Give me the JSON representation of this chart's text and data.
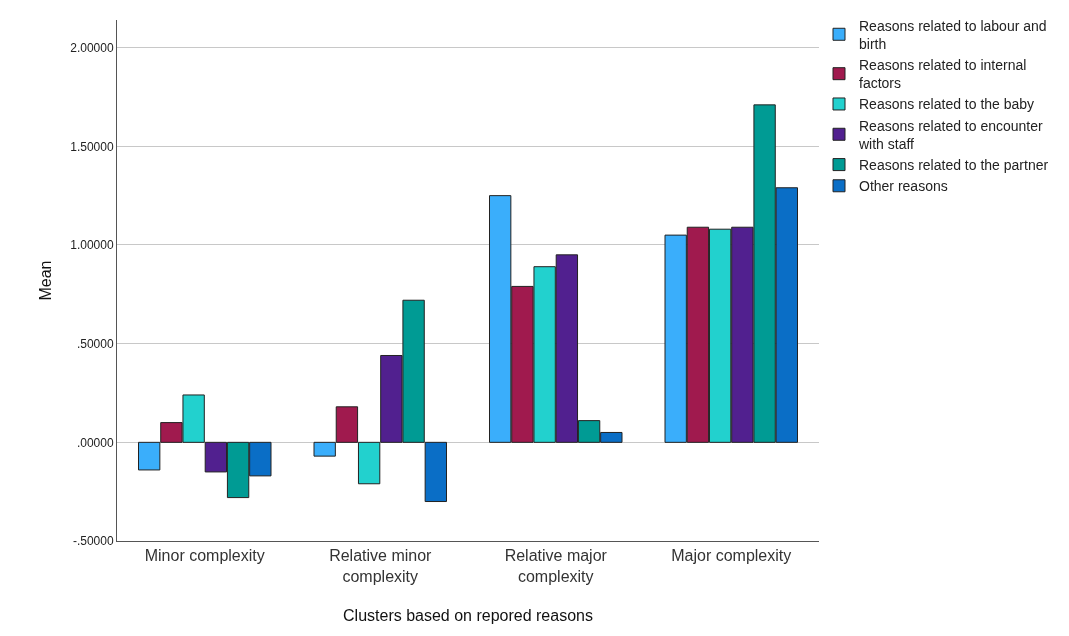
{
  "chart_data": {
    "type": "bar",
    "xlabel": "Clusters based on repored reasons",
    "ylabel": "Mean",
    "categories": [
      "Minor complexity",
      "Relative minor complexity",
      "Relative major complexity",
      "Major complexity"
    ],
    "series": [
      {
        "name": "Reasons related to labour and birth",
        "color": "#3aaefb",
        "values": [
          -0.14,
          -0.07,
          1.25,
          1.05
        ]
      },
      {
        "name": "Reasons related to internal factors",
        "color": "#a01a4e",
        "values": [
          0.1,
          0.18,
          0.79,
          1.09
        ]
      },
      {
        "name": "Reasons related to the baby",
        "color": "#22d1ce",
        "values": [
          0.24,
          -0.21,
          0.89,
          1.08
        ]
      },
      {
        "name": "Reasons related to encounter with staff",
        "color": "#51208f",
        "values": [
          -0.15,
          0.44,
          0.95,
          1.09
        ]
      },
      {
        "name": "Reasons related to the partner",
        "color": "#009b94",
        "values": [
          -0.28,
          0.72,
          0.11,
          1.71
        ]
      },
      {
        "name": "Other reasons",
        "color": "#0a6ec6",
        "values": [
          -0.17,
          -0.3,
          0.05,
          1.29
        ]
      }
    ],
    "ylim": [
      -0.5,
      2.14
    ],
    "yticks": [
      {
        "value": -0.5,
        "label": "-.50000"
      },
      {
        "value": 0,
        "label": ".00000"
      },
      {
        "value": 0.5,
        "label": ".50000"
      },
      {
        "value": 1,
        "label": "1.00000"
      },
      {
        "value": 1.5,
        "label": "1.50000"
      },
      {
        "value": 2,
        "label": "2.00000"
      }
    ],
    "grid": "y",
    "legend": "top right"
  }
}
